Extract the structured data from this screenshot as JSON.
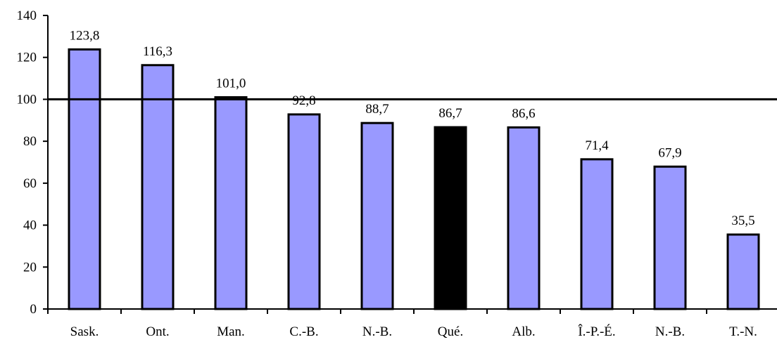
{
  "chart_data": {
    "type": "bar",
    "categories": [
      "Sask.",
      "Ont.",
      "Man.",
      "C.-B.",
      "N.-B.",
      "Qué.",
      "Alb.",
      "Î.-P.-É.",
      "N.-B.",
      "T.-N."
    ],
    "values": [
      123.8,
      116.3,
      101.0,
      92.8,
      88.7,
      86.7,
      86.6,
      71.4,
      67.9,
      35.5
    ],
    "value_labels": [
      "123,8",
      "116,3",
      "101,0",
      "92,8",
      "88,7",
      "86,7",
      "86,6",
      "71,4",
      "67,9",
      "35,5"
    ],
    "highlight_index": 5,
    "colors": {
      "bar": "#9999ff",
      "highlight": "#000000",
      "outline": "#000000"
    },
    "ylim": [
      0,
      140
    ],
    "yticks": [
      0,
      20,
      40,
      60,
      80,
      100,
      120,
      140
    ],
    "reference_line": 100,
    "title": "",
    "xlabel": "",
    "ylabel": "",
    "grid": false,
    "legend": "none"
  }
}
